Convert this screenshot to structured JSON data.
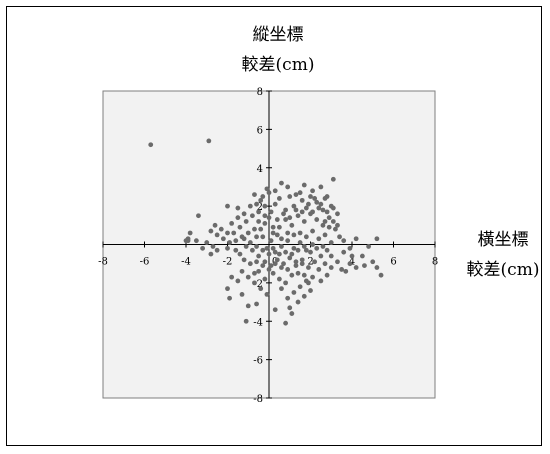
{
  "chart_data": {
    "type": "scatter",
    "ylabel_line1": "縱坐標",
    "ylabel_line2": "較差(cm)",
    "xlabel_line1": "橫坐標",
    "xlabel_line2": "較差(cm)",
    "xlim": [
      -8,
      8
    ],
    "ylim": [
      -8,
      8
    ],
    "x_ticks": [
      -8,
      -6,
      -4,
      -2,
      0,
      2,
      4,
      6,
      8
    ],
    "y_ticks": [
      -8,
      -6,
      -4,
      -2,
      0,
      2,
      4,
      6,
      8
    ],
    "plot_background": "#f2f2f2",
    "marker_color": "#6b6b6b",
    "points": [
      [
        -5.7,
        5.2
      ],
      [
        -2.9,
        5.4
      ],
      [
        -2.0,
        2.0
      ],
      [
        -1.5,
        1.9
      ],
      [
        -0.9,
        2.0
      ],
      [
        -0.7,
        2.6
      ],
      [
        -0.3,
        2.5
      ],
      [
        -0.1,
        2.9
      ],
      [
        0.3,
        2.8
      ],
      [
        0.6,
        3.2
      ],
      [
        0.9,
        3.0
      ],
      [
        1.3,
        2.6
      ],
      [
        1.7,
        3.1
      ],
      [
        2.1,
        2.8
      ],
      [
        2.5,
        3.0
      ],
      [
        2.8,
        2.5
      ],
      [
        3.1,
        3.4
      ],
      [
        3.3,
        1.6
      ],
      [
        3.1,
        1.2
      ],
      [
        2.9,
        0.9
      ],
      [
        2.6,
        1.8
      ],
      [
        2.3,
        2.2
      ],
      [
        2.0,
        2.5
      ],
      [
        1.6,
        2.3
      ],
      [
        1.2,
        2.0
      ],
      [
        0.8,
        1.8
      ],
      [
        0.3,
        2.1
      ],
      [
        -0.2,
        2.0
      ],
      [
        -0.5,
        1.7
      ],
      [
        -0.8,
        1.5
      ],
      [
        -1.1,
        1.2
      ],
      [
        -1.4,
        0.9
      ],
      [
        -1.7,
        0.6
      ],
      [
        -1.2,
        0.3
      ],
      [
        -0.9,
        0.1
      ],
      [
        -0.6,
        0.4
      ],
      [
        -0.4,
        0.8
      ],
      [
        -0.2,
        1.1
      ],
      [
        0.0,
        1.4
      ],
      [
        0.2,
        0.9
      ],
      [
        0.4,
        0.5
      ],
      [
        0.1,
        0.2
      ],
      [
        -0.1,
        -0.2
      ],
      [
        0.3,
        -0.4
      ],
      [
        0.6,
        -0.1
      ],
      [
        0.9,
        0.2
      ],
      [
        1.2,
        -0.2
      ],
      [
        1.5,
        0.1
      ],
      [
        1.8,
        -0.3
      ],
      [
        2.1,
        0.0
      ],
      [
        2.4,
        0.3
      ],
      [
        2.7,
        0.5
      ],
      [
        3.0,
        0.1
      ],
      [
        2.8,
        -0.3
      ],
      [
        2.5,
        -0.6
      ],
      [
        2.2,
        -0.9
      ],
      [
        1.9,
        -1.2
      ],
      [
        1.6,
        -0.8
      ],
      [
        1.3,
        -1.1
      ],
      [
        1.0,
        -0.7
      ],
      [
        0.7,
        -1.0
      ],
      [
        0.4,
        -0.8
      ],
      [
        0.1,
        -1.1
      ],
      [
        -0.2,
        -0.9
      ],
      [
        -0.5,
        -0.6
      ],
      [
        -0.8,
        -0.3
      ],
      [
        -1.1,
        -0.1
      ],
      [
        -1.4,
        -0.5
      ],
      [
        0.5,
        0.9
      ],
      [
        0.8,
        1.3
      ],
      [
        1.1,
        1.0
      ],
      [
        1.4,
        1.5
      ],
      [
        1.7,
        1.2
      ],
      [
        2.0,
        1.6
      ],
      [
        2.3,
        1.3
      ],
      [
        2.6,
        1.0
      ],
      [
        2.9,
        1.4
      ],
      [
        3.2,
        0.8
      ],
      [
        3.4,
        0.4
      ],
      [
        3.6,
        0.2
      ],
      [
        3.0,
        2.0
      ],
      [
        2.7,
        2.4
      ],
      [
        2.4,
        1.9
      ],
      [
        2.1,
        1.7
      ],
      [
        1.8,
        1.9
      ],
      [
        1.5,
        2.7
      ],
      [
        1.0,
        2.5
      ],
      [
        0.5,
        2.4
      ],
      [
        0.0,
        2.7
      ],
      [
        -0.4,
        2.3
      ],
      [
        -0.6,
        2.1
      ],
      [
        1.2,
        0.5
      ],
      [
        1.5,
        0.6
      ],
      [
        1.8,
        0.4
      ],
      [
        2.1,
        0.7
      ],
      [
        0.9,
        0.6
      ],
      [
        0.6,
        0.3
      ],
      [
        0.2,
        0.6
      ],
      [
        -0.3,
        0.4
      ],
      [
        -0.6,
        -0.1
      ],
      [
        -0.3,
        -0.3
      ],
      [
        0.0,
        -0.5
      ],
      [
        0.2,
        -0.2
      ],
      [
        0.5,
        -0.5
      ],
      [
        0.8,
        -0.4
      ],
      [
        1.1,
        -0.5
      ],
      [
        1.4,
        -0.3
      ],
      [
        1.7,
        -0.1
      ],
      [
        2.0,
        -0.4
      ],
      [
        2.3,
        -0.2
      ],
      [
        2.6,
        -0.1
      ],
      [
        1.3,
        1.8
      ],
      [
        1.6,
        1.7
      ],
      [
        1.9,
        2.1
      ],
      [
        2.2,
        2.4
      ],
      [
        2.5,
        2.1
      ],
      [
        2.8,
        1.7
      ],
      [
        3.1,
        1.9
      ],
      [
        3.3,
        1.0
      ],
      [
        2.7,
        1.2
      ],
      [
        1.0,
        1.4
      ],
      [
        0.7,
        1.6
      ],
      [
        0.4,
        1.3
      ],
      [
        0.1,
        1.7
      ],
      [
        -0.2,
        1.5
      ],
      [
        -0.5,
        1.2
      ],
      [
        -0.7,
        0.8
      ],
      [
        -1.0,
        0.6
      ],
      [
        -1.3,
        0.4
      ],
      [
        -1.6,
        0.2
      ],
      [
        -1.9,
        0.1
      ],
      [
        -2.2,
        0.3
      ],
      [
        -2.5,
        0.5
      ],
      [
        -2.8,
        0.7
      ],
      [
        -2.6,
        1.0
      ],
      [
        -2.3,
        0.8
      ],
      [
        -2.0,
        0.6
      ],
      [
        -1.8,
        1.1
      ],
      [
        -1.5,
        1.4
      ],
      [
        -1.2,
        1.6
      ],
      [
        -3.4,
        1.5
      ],
      [
        -3.8,
        0.6
      ],
      [
        -3.9,
        0.3
      ],
      [
        -3.5,
        0.2
      ],
      [
        -3.0,
        0.1
      ],
      [
        -2.7,
        -0.1
      ],
      [
        -3.2,
        -0.2
      ],
      [
        -2.5,
        -0.3
      ],
      [
        -2.0,
        -0.2
      ],
      [
        -1.6,
        -0.3
      ],
      [
        -4.0,
        0.2
      ],
      [
        -3.9,
        0.2
      ],
      [
        -2.8,
        -0.5
      ],
      [
        4.2,
        0.3
      ],
      [
        4.5,
        -0.6
      ],
      [
        4.8,
        -0.1
      ],
      [
        5.2,
        0.3
      ],
      [
        5.0,
        -0.9
      ],
      [
        4.6,
        -1.1
      ],
      [
        4.2,
        -1.2
      ],
      [
        3.7,
        -1.4
      ],
      [
        3.3,
        -0.9
      ],
      [
        3.0,
        -0.6
      ],
      [
        3.6,
        -0.4
      ],
      [
        3.9,
        -0.2
      ],
      [
        4.0,
        -0.6
      ],
      [
        5.4,
        -1.6
      ],
      [
        5.2,
        -1.2
      ],
      [
        3.9,
        -1.0
      ],
      [
        3.5,
        -1.3
      ],
      [
        2.7,
        -1.0
      ],
      [
        2.4,
        -1.3
      ],
      [
        2.1,
        -1.7
      ],
      [
        1.8,
        -1.9
      ],
      [
        1.5,
        -2.2
      ],
      [
        1.2,
        -2.5
      ],
      [
        0.9,
        -2.8
      ],
      [
        0.6,
        -2.3
      ],
      [
        1.0,
        -3.3
      ],
      [
        1.4,
        -3.0
      ],
      [
        1.7,
        -2.7
      ],
      [
        2.0,
        -2.4
      ],
      [
        0.3,
        -3.4
      ],
      [
        -0.1,
        -2.6
      ],
      [
        -0.4,
        -2.3
      ],
      [
        -0.7,
        -2.0
      ],
      [
        -1.0,
        -1.7
      ],
      [
        -1.3,
        -1.4
      ],
      [
        -1.5,
        -1.9
      ],
      [
        -1.8,
        -1.7
      ],
      [
        -2.0,
        -2.3
      ],
      [
        -1.9,
        -2.8
      ],
      [
        -1.3,
        -2.6
      ],
      [
        -0.5,
        -1.4
      ],
      [
        -0.2,
        -1.8
      ],
      [
        0.2,
        -1.5
      ],
      [
        0.5,
        -1.8
      ],
      [
        0.8,
        -2.0
      ],
      [
        1.1,
        -1.6
      ],
      [
        1.4,
        -1.5
      ],
      [
        1.7,
        -1.6
      ],
      [
        -1.1,
        -4.0
      ],
      [
        -1.0,
        -3.2
      ],
      [
        -0.6,
        -3.1
      ],
      [
        0.8,
        -4.1
      ],
      [
        1.1,
        -3.6
      ],
      [
        1.9,
        -2.0
      ],
      [
        1.6,
        -1.0
      ],
      [
        1.3,
        -0.9
      ],
      [
        0.9,
        -1.3
      ],
      [
        0.6,
        -1.2
      ],
      [
        0.3,
        -1.0
      ],
      [
        0.0,
        -1.3
      ],
      [
        -0.3,
        -1.1
      ],
      [
        -0.6,
        -0.9
      ],
      [
        -0.9,
        -1.0
      ],
      [
        -1.2,
        -0.8
      ],
      [
        -0.7,
        -1.5
      ],
      [
        3.0,
        -1.2
      ],
      [
        2.8,
        -1.6
      ],
      [
        2.5,
        -1.9
      ]
    ]
  }
}
